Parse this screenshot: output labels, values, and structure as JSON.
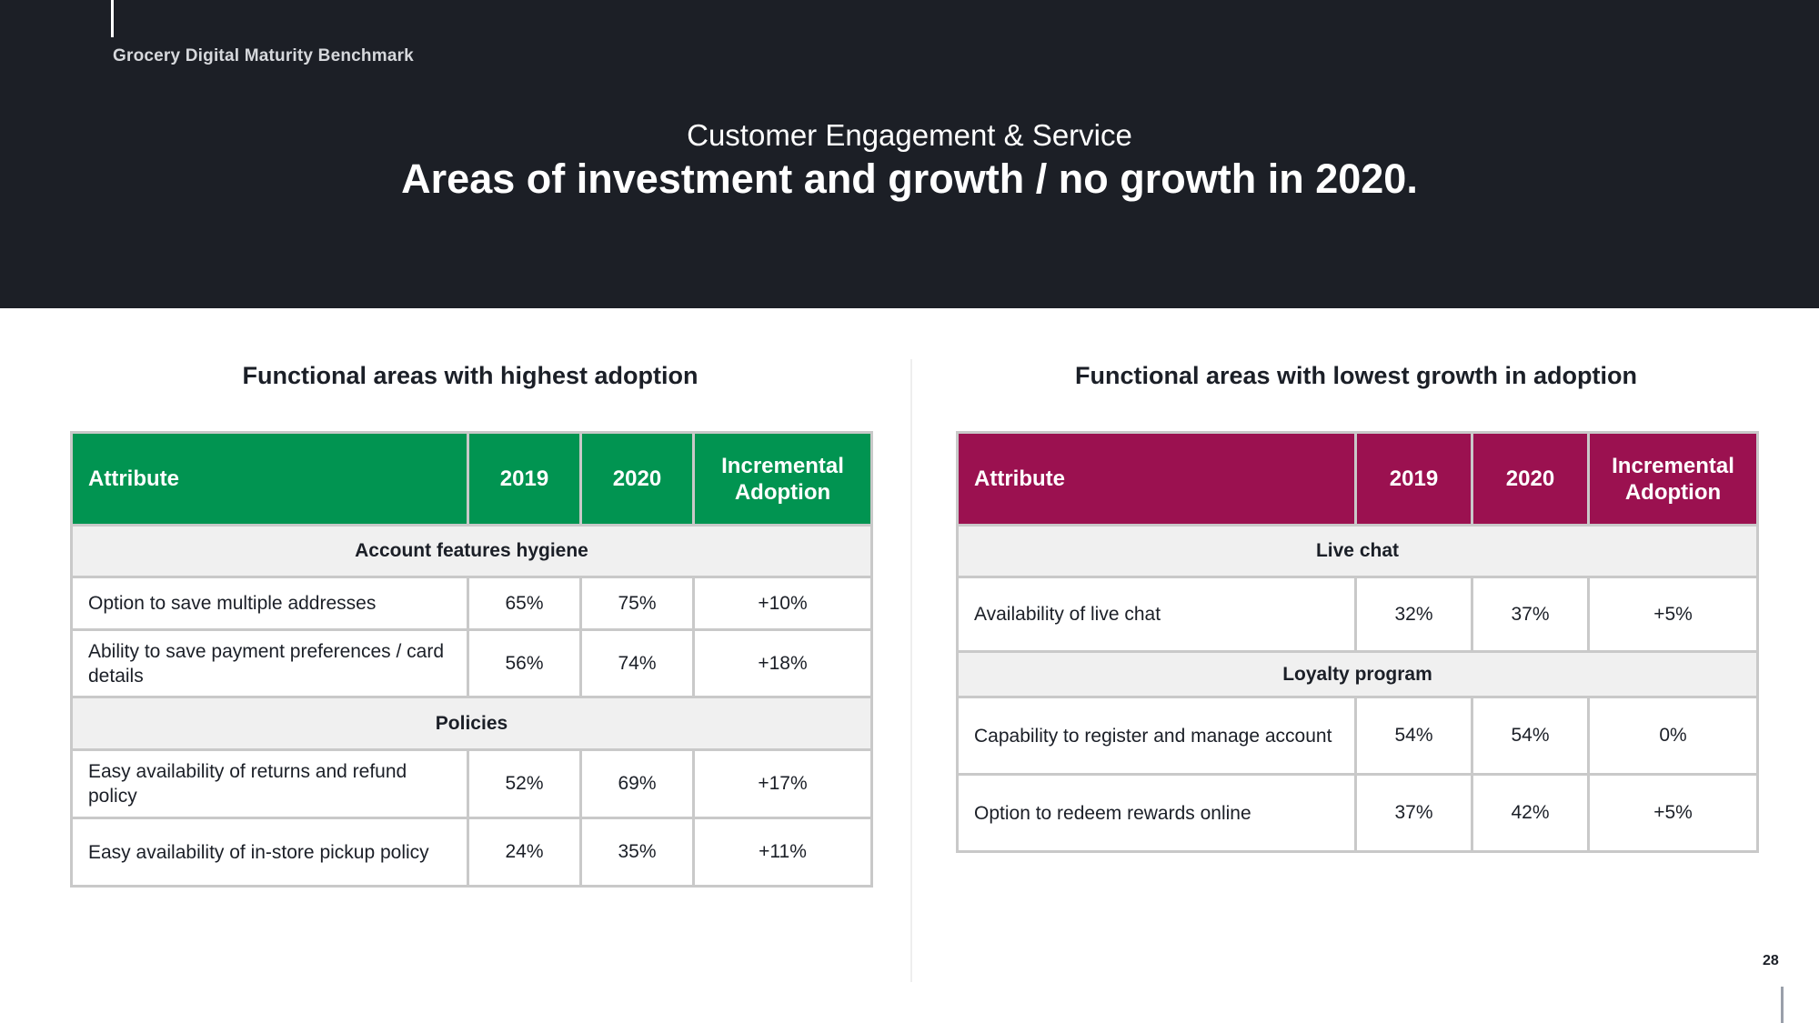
{
  "header": {
    "brand": "Grocery Digital Maturity Benchmark",
    "subtitle": "Customer Engagement & Service",
    "title": "Areas of investment and growth / no growth in 2020."
  },
  "left": {
    "section_title": "Functional areas with highest adoption",
    "header_color": "#019451",
    "columns": [
      "Attribute",
      "2019",
      "2020",
      "Incremental Adoption"
    ],
    "groups": [
      {
        "category": "Account features hygiene",
        "rows": [
          [
            "Option to save multiple addresses",
            "65%",
            "75%",
            "+10%"
          ],
          [
            "Ability to save payment preferences / card details",
            "56%",
            "74%",
            "+18%"
          ]
        ]
      },
      {
        "category": "Policies",
        "rows": [
          [
            "Easy availability of returns and refund policy",
            "52%",
            "69%",
            "+17%"
          ],
          [
            "Easy availability of in-store pickup policy",
            "24%",
            "35%",
            "+11%"
          ]
        ]
      }
    ]
  },
  "right": {
    "section_title": "Functional areas with lowest growth in adoption",
    "header_color": "#9b1150",
    "columns": [
      "Attribute",
      "2019",
      "2020",
      "Incremental Adoption"
    ],
    "groups": [
      {
        "category": "Live chat",
        "rows": [
          [
            "Availability of live chat",
            "32%",
            "37%",
            "+5%"
          ]
        ]
      },
      {
        "category": "Loyalty program",
        "rows": [
          [
            "Capability to register and manage account",
            "54%",
            "54%",
            "0%"
          ],
          [
            "Option to redeem rewards online",
            "37%",
            "42%",
            "+5%"
          ]
        ]
      }
    ]
  },
  "page_number": "28"
}
